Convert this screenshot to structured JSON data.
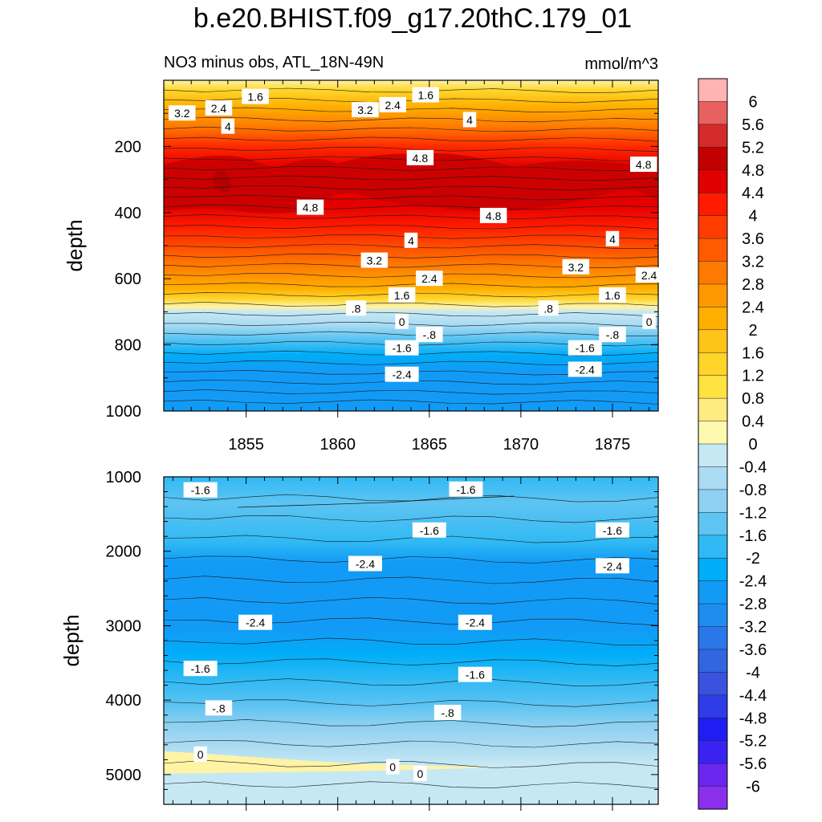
{
  "chart_data": {
    "type": "heatmap",
    "title": "b.e20.BHIST.f09_g17.20thC.179_01",
    "left_string": "NO3 minus obs, ATL_18N-49N",
    "right_string": "mmol/m^3",
    "ylabel": "depth",
    "colorbar": {
      "levels": [
        "6",
        "5.6",
        "5.2",
        "4.8",
        "4.4",
        "4",
        "3.6",
        "3.2",
        "2.8",
        "2.4",
        "2",
        "1.6",
        "1.2",
        "0.8",
        "0.4",
        "0",
        "-0.4",
        "-0.8",
        "-1.2",
        "-1.6",
        "-2",
        "-2.4",
        "-2.8",
        "-3.2",
        "-3.6",
        "-4",
        "-4.4",
        "-4.8",
        "-5.2",
        "-5.6",
        "-6"
      ],
      "colors": [
        "#ffb3b3",
        "#e86060",
        "#d42a2a",
        "#c30000",
        "#e00000",
        "#ff1a00",
        "#ff3c00",
        "#ff5a00",
        "#ff7a00",
        "#ff9800",
        "#ffaf00",
        "#ffc41a",
        "#ffd52a",
        "#ffe140",
        "#ffec80",
        "#fff9b0",
        "#c6e8f4",
        "#a9dbf2",
        "#8fd0f0",
        "#5ec4f2",
        "#30b9f4",
        "#00adf8",
        "#129bf6",
        "#1f8df0",
        "#2a77ea",
        "#3265e0",
        "#3a52e0",
        "#2e3ce8",
        "#1e1ef4",
        "#3a22f2",
        "#6a26ee",
        "#8a30ec"
      ]
    },
    "upper_panel": {
      "x_ticks": [
        "1855",
        "1860",
        "1865",
        "1870",
        "1875"
      ],
      "x_tick_values": [
        1855,
        1860,
        1865,
        1870,
        1875
      ],
      "xlim": [
        1850.5,
        1877.5
      ],
      "y_ticks": [
        "200",
        "400",
        "600",
        "800",
        "1000"
      ],
      "y_tick_values": [
        200,
        400,
        600,
        800,
        1000
      ],
      "ylim": [
        0,
        1000
      ],
      "contour_labels": [
        {
          "text": "1.6",
          "x": 1855.5,
          "y": 50
        },
        {
          "text": "3.2",
          "x": 1851.5,
          "y": 100
        },
        {
          "text": "2.4",
          "x": 1853.5,
          "y": 85
        },
        {
          "text": "3.2",
          "x": 1861.5,
          "y": 90
        },
        {
          "text": "2.4",
          "x": 1863.0,
          "y": 75
        },
        {
          "text": "1.6",
          "x": 1864.8,
          "y": 45
        },
        {
          "text": "4",
          "x": 1854.0,
          "y": 140
        },
        {
          "text": "4",
          "x": 1867.2,
          "y": 120
        },
        {
          "text": "4.8",
          "x": 1864.5,
          "y": 235
        },
        {
          "text": "4.8",
          "x": 1876.7,
          "y": 255
        },
        {
          "text": "4.8",
          "x": 1858.5,
          "y": 385
        },
        {
          "text": "4.8",
          "x": 1868.5,
          "y": 410
        },
        {
          "text": "4",
          "x": 1864.0,
          "y": 485
        },
        {
          "text": "4",
          "x": 1875.0,
          "y": 480
        },
        {
          "text": "3.2",
          "x": 1862.0,
          "y": 545
        },
        {
          "text": "3.2",
          "x": 1873.0,
          "y": 565
        },
        {
          "text": "2.4",
          "x": 1865.0,
          "y": 600
        },
        {
          "text": "2.4",
          "x": 1877.0,
          "y": 590
        },
        {
          "text": "1.6",
          "x": 1863.5,
          "y": 650
        },
        {
          "text": "1.6",
          "x": 1875.0,
          "y": 650
        },
        {
          "text": ".8",
          "x": 1861.0,
          "y": 690
        },
        {
          "text": ".8",
          "x": 1871.5,
          "y": 690
        },
        {
          "text": "0",
          "x": 1863.5,
          "y": 730
        },
        {
          "text": "0",
          "x": 1877.0,
          "y": 730
        },
        {
          "text": "-.8",
          "x": 1865.0,
          "y": 770
        },
        {
          "text": "-.8",
          "x": 1875.0,
          "y": 770
        },
        {
          "text": "-1.6",
          "x": 1863.5,
          "y": 810
        },
        {
          "text": "-1.6",
          "x": 1873.5,
          "y": 810
        },
        {
          "text": "-2.4",
          "x": 1863.5,
          "y": 890
        },
        {
          "text": "-2.4",
          "x": 1873.5,
          "y": 875
        }
      ]
    },
    "lower_panel": {
      "y_ticks": [
        "1000",
        "2000",
        "3000",
        "4000",
        "5000"
      ],
      "y_tick_values": [
        1000,
        2000,
        3000,
        4000,
        5000
      ],
      "ylim": [
        1000,
        5400
      ],
      "contour_labels": [
        {
          "text": "-1.6",
          "x": 1852.5,
          "y": 1180
        },
        {
          "text": "-1.6",
          "x": 1867.0,
          "y": 1170
        },
        {
          "text": "-1.6",
          "x": 1865.0,
          "y": 1720
        },
        {
          "text": "-1.6",
          "x": 1875.0,
          "y": 1720
        },
        {
          "text": "-2.4",
          "x": 1861.5,
          "y": 2170
        },
        {
          "text": "-2.4",
          "x": 1875.0,
          "y": 2200
        },
        {
          "text": "-2.4",
          "x": 1855.5,
          "y": 2960
        },
        {
          "text": "-2.4",
          "x": 1867.5,
          "y": 2960
        },
        {
          "text": "-1.6",
          "x": 1852.5,
          "y": 3580
        },
        {
          "text": "-1.6",
          "x": 1867.5,
          "y": 3660
        },
        {
          "text": "-.8",
          "x": 1853.5,
          "y": 4110
        },
        {
          "text": "-.8",
          "x": 1866.0,
          "y": 4170
        },
        {
          "text": "0",
          "x": 1852.5,
          "y": 4730
        },
        {
          "text": "0",
          "x": 1863.0,
          "y": 4900
        },
        {
          "text": "0",
          "x": 1864.5,
          "y": 4990
        }
      ]
    }
  }
}
